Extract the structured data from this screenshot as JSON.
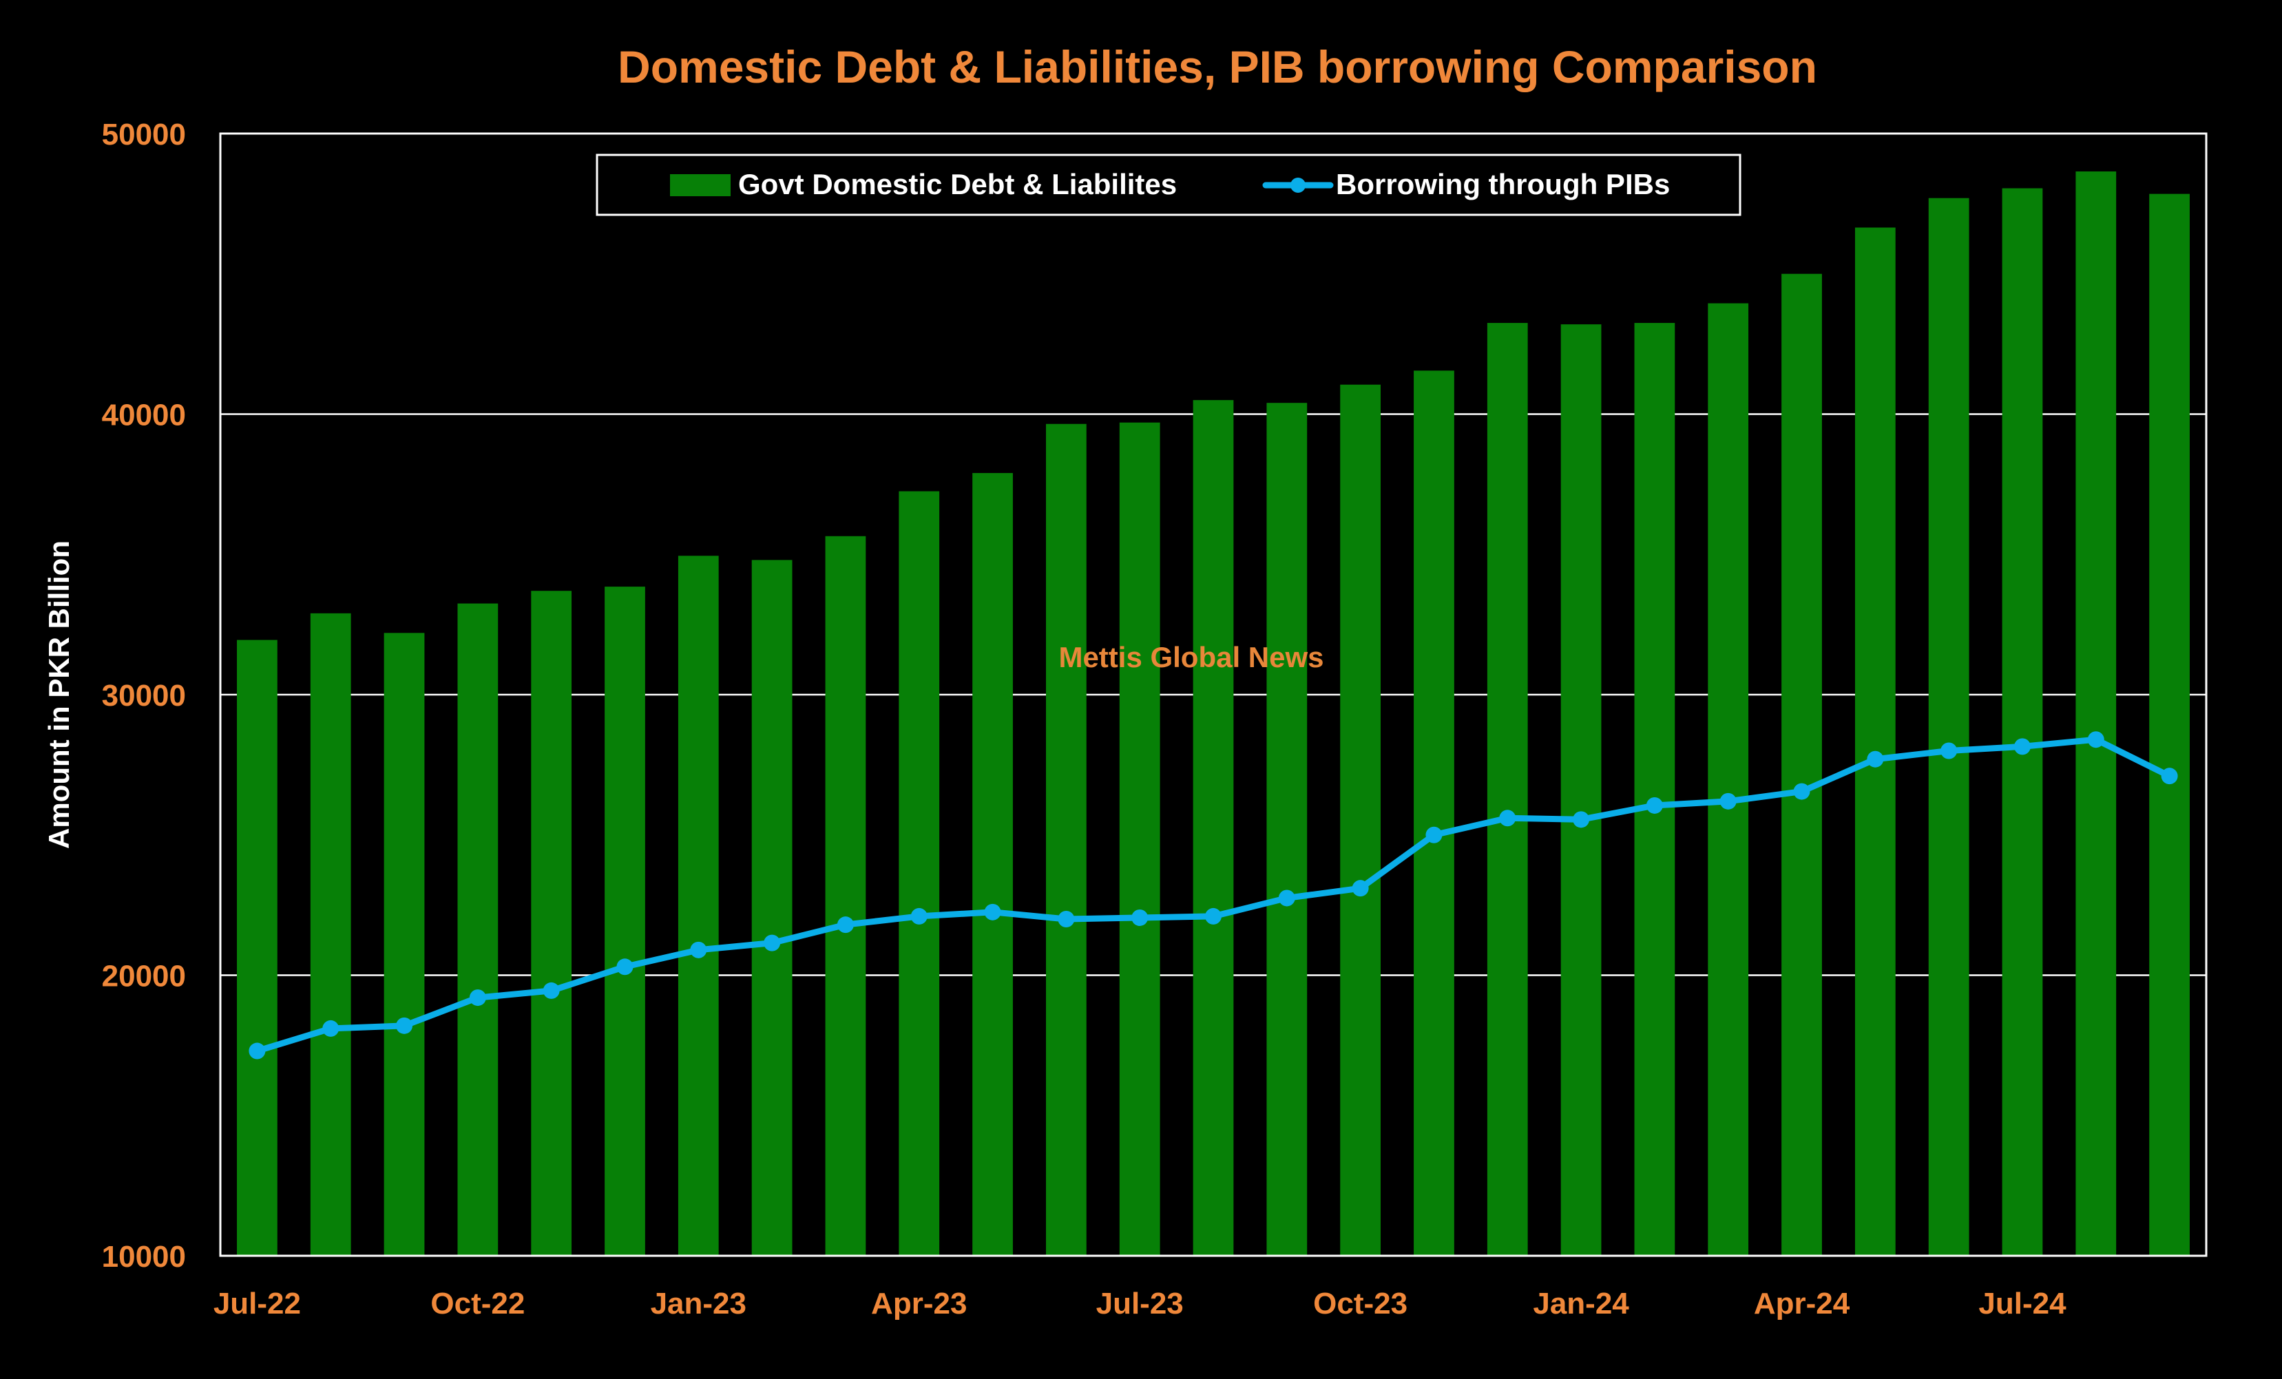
{
  "chart_data": {
    "type": "bar",
    "title": "Domestic Debt & Liabilities, PIB borrowing Comparison",
    "ylabel": "Amount in PKR Billion",
    "xlabel": "",
    "watermark": "Mettis Global News",
    "ylim": [
      10000,
      50000
    ],
    "yticks": [
      10000,
      20000,
      30000,
      40000,
      50000
    ],
    "grid": true,
    "legend_position": "top-center",
    "x": [
      "Jul-22",
      "Aug-22",
      "Sep-22",
      "Oct-22",
      "Nov-22",
      "Dec-22",
      "Jan-23",
      "Feb-23",
      "Mar-23",
      "Apr-23",
      "May-23",
      "Jun-23",
      "Jul-23",
      "Aug-23",
      "Sep-23",
      "Oct-23",
      "Nov-23",
      "Dec-23",
      "Jan-24",
      "Feb-24",
      "Mar-24",
      "Apr-24",
      "May-24",
      "Jun-24",
      "Jul-24",
      "Aug-24",
      "Sep-24"
    ],
    "xtick_labels": [
      "Jul-22",
      "",
      "",
      "Oct-22",
      "",
      "",
      "Jan-23",
      "",
      "",
      "Apr-23",
      "",
      "",
      "Jul-23",
      "",
      "",
      "Oct-23",
      "",
      "",
      "Jan-24",
      "",
      "",
      "Apr-24",
      "",
      "",
      "Jul-24",
      "",
      ""
    ],
    "series": [
      {
        "name": "Govt Domestic Debt & Liabilites",
        "kind": "bar",
        "color": "#078007",
        "values": [
          31950,
          32900,
          32200,
          33250,
          33700,
          33850,
          34950,
          34800,
          35650,
          37250,
          37900,
          39650,
          39700,
          40500,
          40400,
          41050,
          41550,
          43250,
          43200,
          43250,
          43950,
          45000,
          46650,
          47700,
          48050,
          48650,
          47850
        ]
      },
      {
        "name": "Borrowing through PIBs",
        "kind": "line",
        "color": "#0aaee9",
        "values": [
          17300,
          18100,
          18200,
          19200,
          19450,
          20300,
          20900,
          21150,
          21800,
          22100,
          22250,
          22000,
          22050,
          22100,
          22750,
          23100,
          25000,
          25600,
          25550,
          26050,
          26200,
          26550,
          27700,
          28000,
          28150,
          28400,
          27100
        ]
      }
    ]
  },
  "colors": {
    "background": "#000000",
    "title": "#f0883a",
    "tick_text": "#f0883a",
    "axis_label": "#ffffff",
    "legend_text": "#ffffff",
    "grid": "#ffffff",
    "watermark": "#e8873a"
  }
}
